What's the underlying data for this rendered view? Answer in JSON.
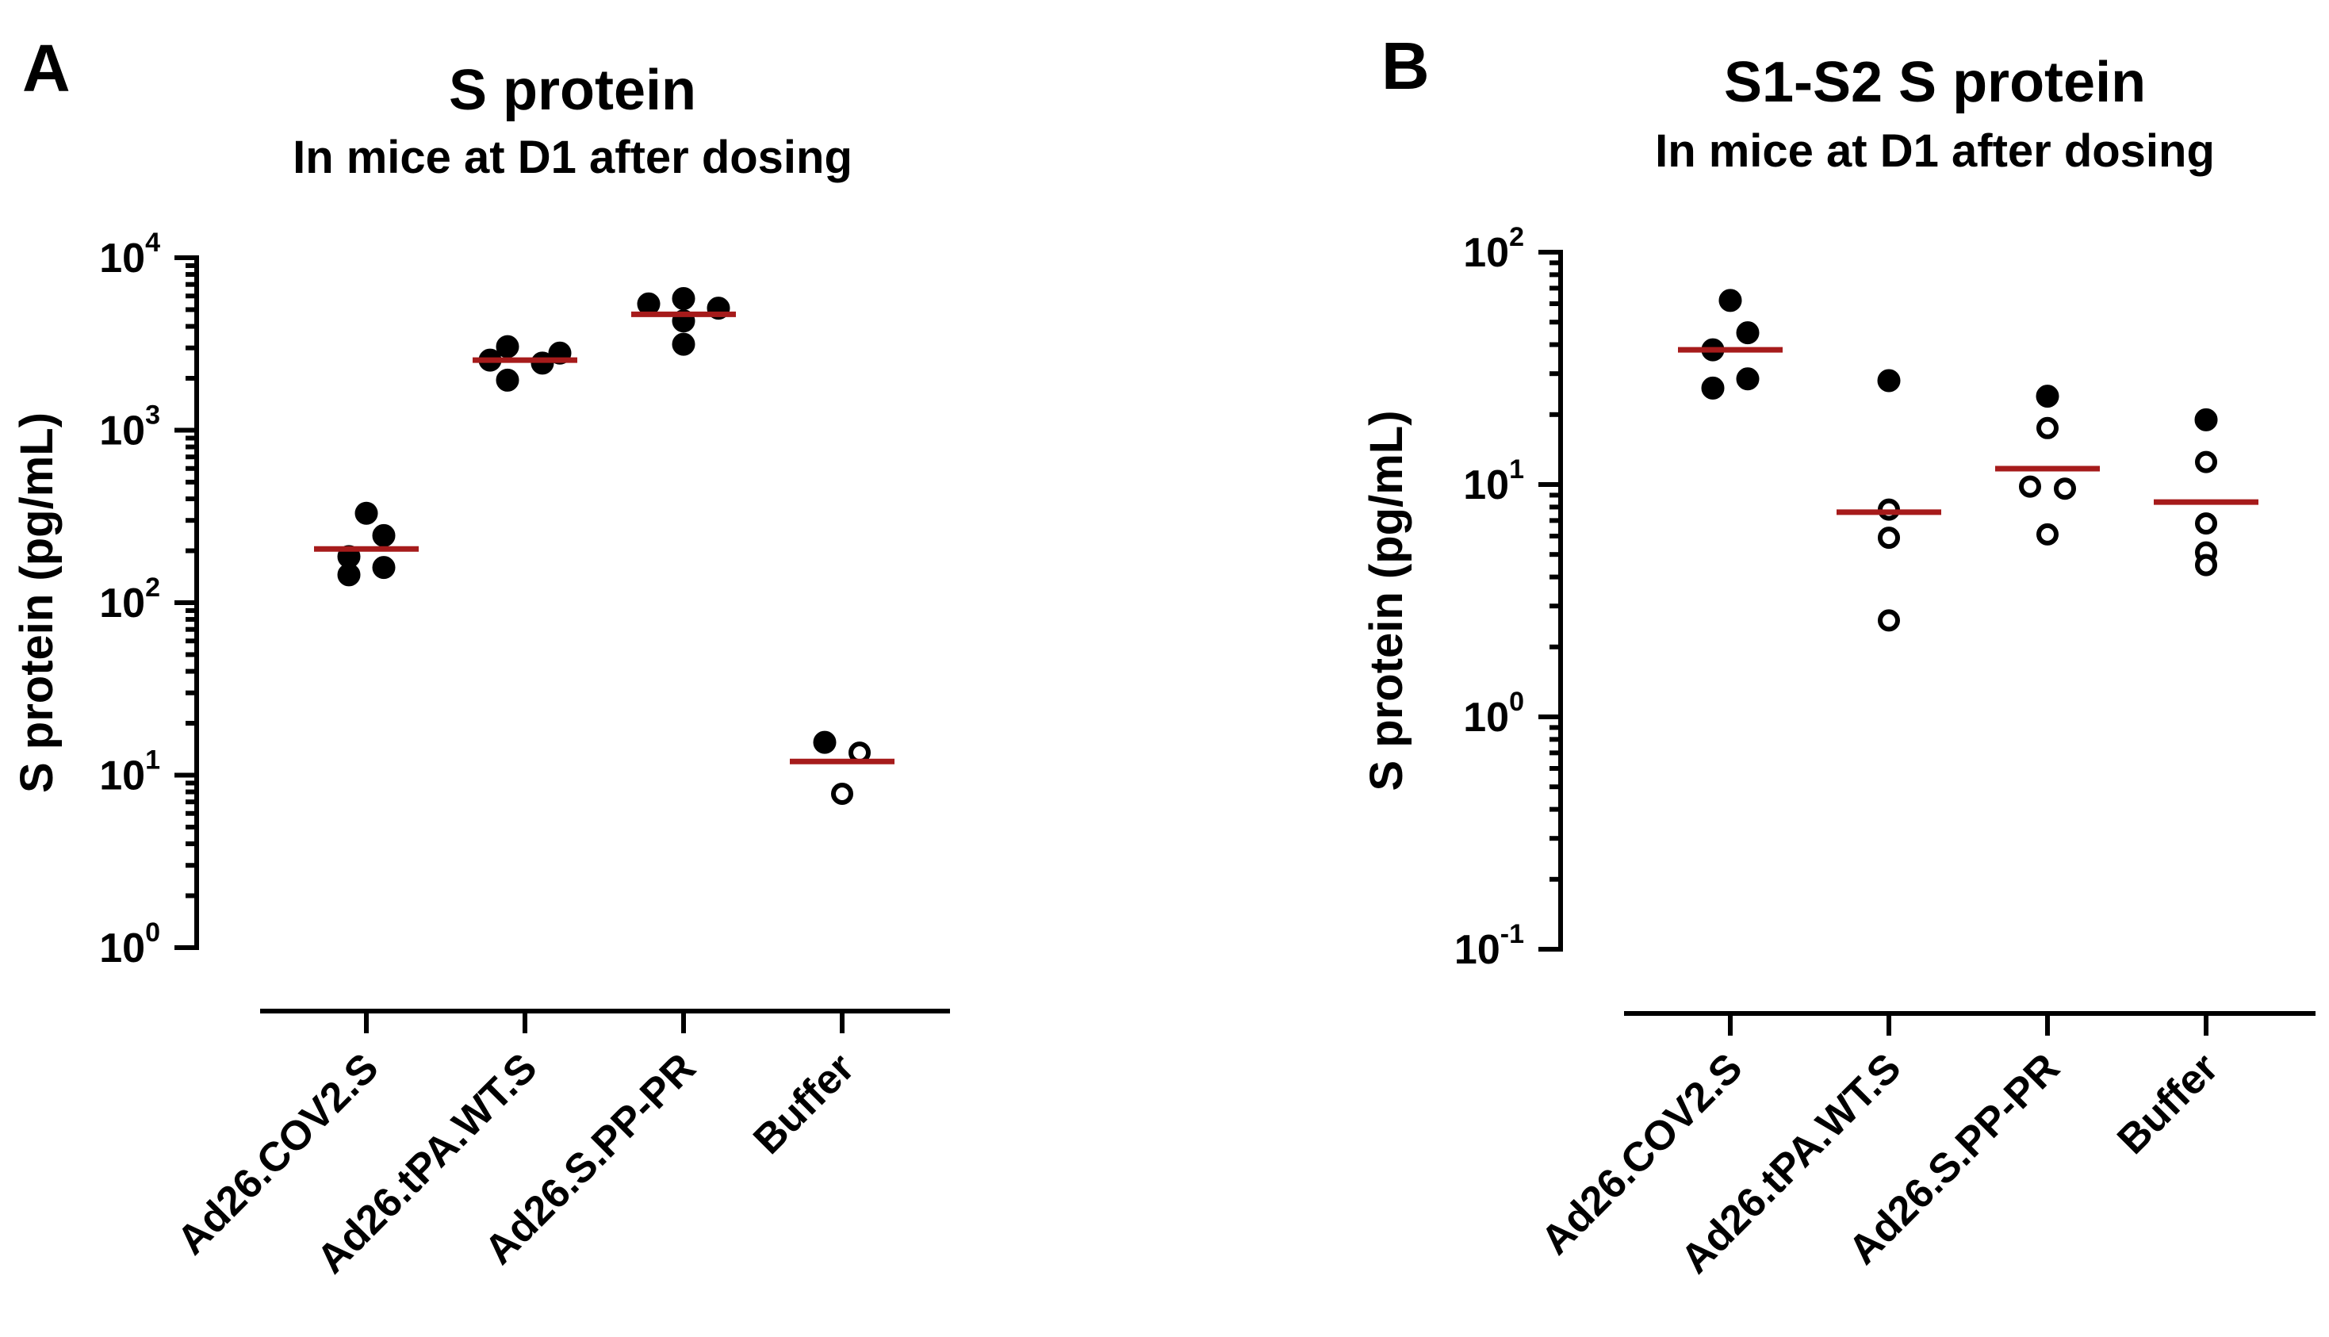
{
  "chart_data": [
    {
      "panel_letter": "A",
      "type": "scatter",
      "title": "S protein",
      "subtitle": "In mice at D1 after dosing",
      "ylabel": "S protein (pg/mL)",
      "yscale": "log",
      "ylim": [
        1,
        10000
      ],
      "yticks": [
        {
          "base": "10",
          "exp": "0",
          "value": 1
        },
        {
          "base": "10",
          "exp": "1",
          "value": 10
        },
        {
          "base": "10",
          "exp": "2",
          "value": 100
        },
        {
          "base": "10",
          "exp": "3",
          "value": 1000
        },
        {
          "base": "10",
          "exp": "4",
          "value": 10000
        }
      ],
      "categories": [
        "Ad26.COV2.S",
        "Ad26.tPA.WT.S",
        "Ad26.S.PP-PR",
        "Buffer"
      ],
      "groups": [
        {
          "category": "Ad26.COV2.S",
          "median": 205,
          "points": [
            {
              "value": 330,
              "jitter": 0,
              "filled": true
            },
            {
              "value": 245,
              "jitter": 1,
              "filled": true
            },
            {
              "value": 185,
              "jitter": -1,
              "filled": true
            },
            {
              "value": 145,
              "jitter": -1,
              "filled": true
            },
            {
              "value": 160,
              "jitter": 1,
              "filled": true
            }
          ]
        },
        {
          "category": "Ad26.tPA.WT.S",
          "median": 2550,
          "points": [
            {
              "value": 3050,
              "jitter": -1,
              "filled": true
            },
            {
              "value": 2800,
              "jitter": 2,
              "filled": true
            },
            {
              "value": 2550,
              "jitter": -2,
              "filled": true
            },
            {
              "value": 2450,
              "jitter": 1,
              "filled": true
            },
            {
              "value": 1950,
              "jitter": -1,
              "filled": true
            }
          ]
        },
        {
          "category": "Ad26.S.PP-PR",
          "median": 4700,
          "points": [
            {
              "value": 5800,
              "jitter": 0,
              "filled": true
            },
            {
              "value": 5400,
              "jitter": -2,
              "filled": true
            },
            {
              "value": 5100,
              "jitter": 2,
              "filled": true
            },
            {
              "value": 4300,
              "jitter": 0,
              "filled": true
            },
            {
              "value": 3150,
              "jitter": 0,
              "filled": true
            }
          ]
        },
        {
          "category": "Buffer",
          "median": 12,
          "points": [
            {
              "value": 15.5,
              "jitter": -1,
              "filled": true
            },
            {
              "value": 13.5,
              "jitter": 1,
              "filled": false
            },
            {
              "value": 7.8,
              "jitter": 0,
              "filled": false
            }
          ]
        }
      ]
    },
    {
      "panel_letter": "B",
      "type": "scatter",
      "title": "S1-S2 S protein",
      "subtitle": "In mice at D1 after dosing",
      "ylabel": "S protein (pg/mL)",
      "yscale": "log",
      "ylim": [
        0.1,
        100
      ],
      "yticks": [
        {
          "base": "10",
          "exp": "-1",
          "value": 0.1
        },
        {
          "base": "10",
          "exp": "0",
          "value": 1
        },
        {
          "base": "10",
          "exp": "1",
          "value": 10
        },
        {
          "base": "10",
          "exp": "2",
          "value": 100
        }
      ],
      "categories": [
        "Ad26.COV2.S",
        "Ad26.tPA.WT.S",
        "Ad26.S.PP-PR",
        "Buffer"
      ],
      "groups": [
        {
          "category": "Ad26.COV2.S",
          "median": 38,
          "points": [
            {
              "value": 62,
              "jitter": 0,
              "filled": true
            },
            {
              "value": 45,
              "jitter": 1,
              "filled": true
            },
            {
              "value": 38,
              "jitter": -1,
              "filled": true
            },
            {
              "value": 28.5,
              "jitter": 1,
              "filled": true
            },
            {
              "value": 26,
              "jitter": -1,
              "filled": true
            }
          ]
        },
        {
          "category": "Ad26.tPA.WT.S",
          "median": 7.6,
          "points": [
            {
              "value": 28,
              "jitter": 0,
              "filled": true
            },
            {
              "value": 7.8,
              "jitter": 0,
              "filled": false
            },
            {
              "value": 5.9,
              "jitter": 0,
              "filled": false
            },
            {
              "value": 2.6,
              "jitter": 0,
              "filled": false
            }
          ]
        },
        {
          "category": "Ad26.S.PP-PR",
          "median": 11.7,
          "points": [
            {
              "value": 24,
              "jitter": 0,
              "filled": true
            },
            {
              "value": 17.5,
              "jitter": 0,
              "filled": false
            },
            {
              "value": 9.8,
              "jitter": -1,
              "filled": false
            },
            {
              "value": 9.6,
              "jitter": 1,
              "filled": false
            },
            {
              "value": 6.1,
              "jitter": 0,
              "filled": false
            }
          ]
        },
        {
          "category": "Buffer",
          "median": 8.4,
          "points": [
            {
              "value": 19,
              "jitter": 0,
              "filled": true
            },
            {
              "value": 12.5,
              "jitter": 0,
              "filled": false
            },
            {
              "value": 6.8,
              "jitter": 0,
              "filled": false
            },
            {
              "value": 5.1,
              "jitter": 0,
              "filled": false
            },
            {
              "value": 4.5,
              "jitter": 0,
              "filled": false
            }
          ]
        }
      ]
    }
  ]
}
